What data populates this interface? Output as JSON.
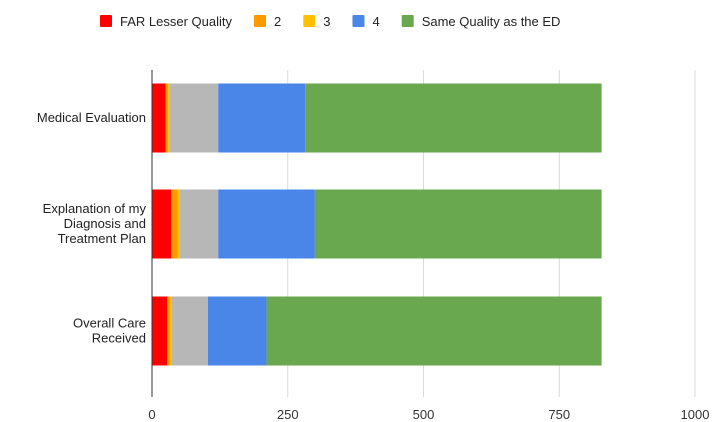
{
  "chart_data": {
    "type": "bar",
    "orientation": "horizontal",
    "stacked": true,
    "categories": [
      [
        "Medical Evaluation"
      ],
      [
        "Explanation of my",
        "Diagnosis and",
        "Treatment Plan"
      ],
      [
        "Overall Care",
        "Received"
      ]
    ],
    "series": [
      {
        "name": "FAR Lesser Quality",
        "color": "#ff0000",
        "values": [
          25,
          35,
          28
        ],
        "in_legend": true
      },
      {
        "name": "2",
        "color": "#ff9900",
        "values": [
          5,
          12,
          5
        ],
        "in_legend": true
      },
      {
        "name": "3",
        "color": "#ffc000",
        "values": [
          3,
          3,
          3
        ],
        "in_legend": true
      },
      {
        "name": "",
        "color": "#b7b7b7",
        "values": [
          89,
          72,
          67
        ],
        "in_legend": false
      },
      {
        "name": "4",
        "color": "#4a86e8",
        "values": [
          160,
          178,
          108
        ],
        "in_legend": true
      },
      {
        "name": "Same Quality as the ED",
        "color": "#6aa84f",
        "values": [
          546,
          528,
          617
        ],
        "in_legend": true
      }
    ],
    "xlim": [
      0,
      1000
    ],
    "xticks": [
      0,
      250,
      500,
      750,
      1000
    ],
    "grid": true,
    "legend_position": "top"
  }
}
